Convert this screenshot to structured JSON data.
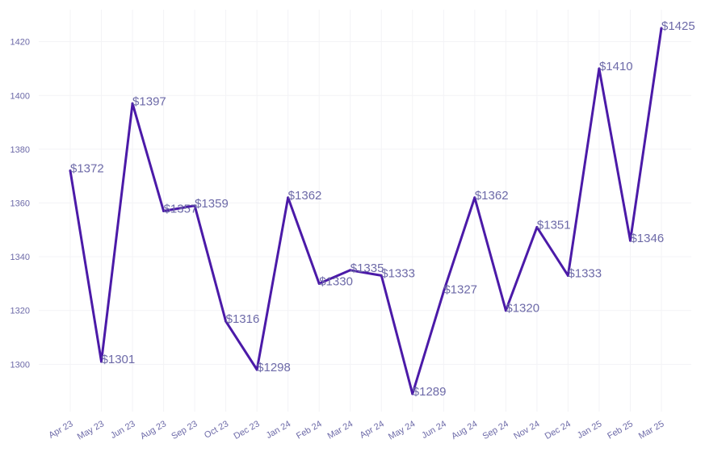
{
  "chart_data": {
    "type": "line",
    "categories": [
      "Apr 23",
      "May 23",
      "Jun 23",
      "Aug 23",
      "Sep 23",
      "Oct 23",
      "Dec 23",
      "Jan 24",
      "Feb 24",
      "Mar 24",
      "Apr 24",
      "May 24",
      "Jun 24",
      "Aug 24",
      "Sep 24",
      "Nov 24",
      "Dec 24",
      "Jan 25",
      "Feb 25",
      "Mar 25"
    ],
    "values": [
      1372,
      1301,
      1397,
      1357,
      1359,
      1316,
      1298,
      1362,
      1330,
      1335,
      1333,
      1289,
      1327,
      1362,
      1320,
      1351,
      1333,
      1410,
      1346,
      1425
    ],
    "labels": [
      "$1372",
      "$1301",
      "$1397",
      "$1357",
      "$1359",
      "$1316",
      "$1298",
      "$1362",
      "$1330",
      "$1335",
      "$1333",
      "$1289",
      "$1327",
      "$1362",
      "$1320",
      "$1351",
      "$1333",
      "$1410",
      "$1346",
      "$1425"
    ],
    "yticks": [
      1300,
      1320,
      1340,
      1360,
      1380,
      1400,
      1420
    ],
    "ylim": [
      1289,
      1425
    ],
    "grid": true,
    "line_color": "#4b1aa8",
    "label_color": "#6d6aa8",
    "title": "",
    "xlabel": "",
    "ylabel": ""
  }
}
